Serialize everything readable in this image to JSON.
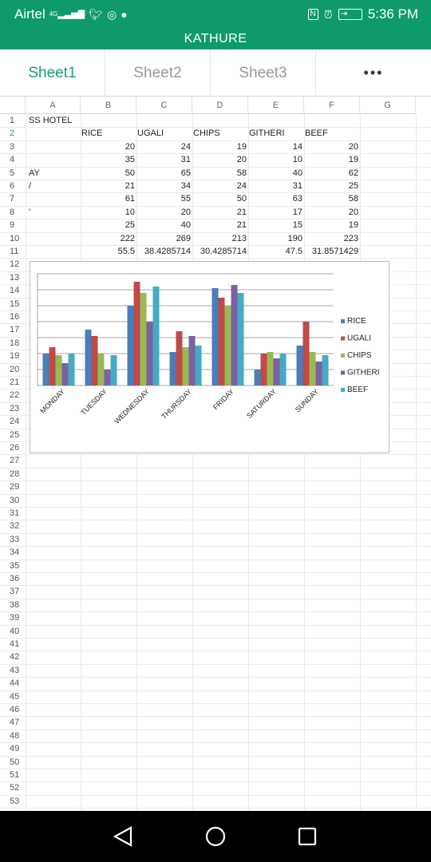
{
  "status": {
    "carrier": "Airtel",
    "network": "4G",
    "time": "5:36 PM",
    "icons": [
      "signal-icon",
      "twitter-icon",
      "instagram-icon",
      "chat-icon",
      "nfc-icon",
      "alarm-icon",
      "battery-icon"
    ]
  },
  "title": "KATHURE",
  "tabs": [
    {
      "label": "Sheet1",
      "active": true
    },
    {
      "label": "Sheet2",
      "active": false
    },
    {
      "label": "Sheet3",
      "active": false
    }
  ],
  "more_label": "•••",
  "columns": [
    "A",
    "B",
    "C",
    "D",
    "E",
    "F",
    "G"
  ],
  "row_count": 53,
  "cells": {
    "r1": {
      "A": "SS HOTEL"
    },
    "r2": {
      "B": "RICE",
      "C": "UGALI",
      "D": "CHIPS",
      "E": "GITHERI",
      "F": "BEEF"
    },
    "r3": {
      "B": "20",
      "C": "24",
      "D": "19",
      "E": "14",
      "F": "20"
    },
    "r4": {
      "B": "35",
      "C": "31",
      "D": "20",
      "E": "10",
      "F": "19"
    },
    "r5": {
      "A": "AY",
      "B": "50",
      "C": "65",
      "D": "58",
      "E": "40",
      "F": "62"
    },
    "r6": {
      "A": "/",
      "B": "21",
      "C": "34",
      "D": "24",
      "E": "31",
      "F": "25"
    },
    "r7": {
      "B": "61",
      "C": "55",
      "D": "50",
      "E": "63",
      "F": "58"
    },
    "r8": {
      "A": "'",
      "B": "10",
      "C": "20",
      "D": "21",
      "E": "17",
      "F": "20"
    },
    "r9": {
      "B": "25",
      "C": "40",
      "D": "21",
      "E": "15",
      "F": "19"
    },
    "r10": {
      "B": "222",
      "C": "269",
      "D": "213",
      "E": "190",
      "F": "223"
    },
    "r11": {
      "B": "55.5",
      "C": "38.4285714",
      "D": "30.4285714",
      "E": "47.5",
      "F": "31.8571429"
    }
  },
  "chart_data": {
    "type": "bar",
    "categories": [
      "MONDAY",
      "TUESDAY",
      "WEDNESDAY",
      "THURSDAY",
      "FRIDAY",
      "SATURDAY",
      "SUNDAY"
    ],
    "series": [
      {
        "name": "RICE",
        "color": "#4a7ebb",
        "values": [
          20,
          35,
          50,
          21,
          61,
          10,
          25
        ]
      },
      {
        "name": "UGALI",
        "color": "#be4b48",
        "values": [
          24,
          31,
          65,
          34,
          55,
          20,
          40
        ]
      },
      {
        "name": "CHIPS",
        "color": "#98b954",
        "values": [
          19,
          20,
          58,
          24,
          50,
          21,
          21
        ]
      },
      {
        "name": "GITHERI",
        "color": "#7d60a0",
        "values": [
          14,
          10,
          40,
          31,
          63,
          17,
          15
        ]
      },
      {
        "name": "BEEF",
        "color": "#46aac5",
        "values": [
          20,
          19,
          62,
          25,
          58,
          20,
          19
        ]
      }
    ],
    "ylim": [
      0,
      70
    ],
    "grid": true,
    "legend": "right",
    "x_tick_rotation": "diagonal"
  }
}
